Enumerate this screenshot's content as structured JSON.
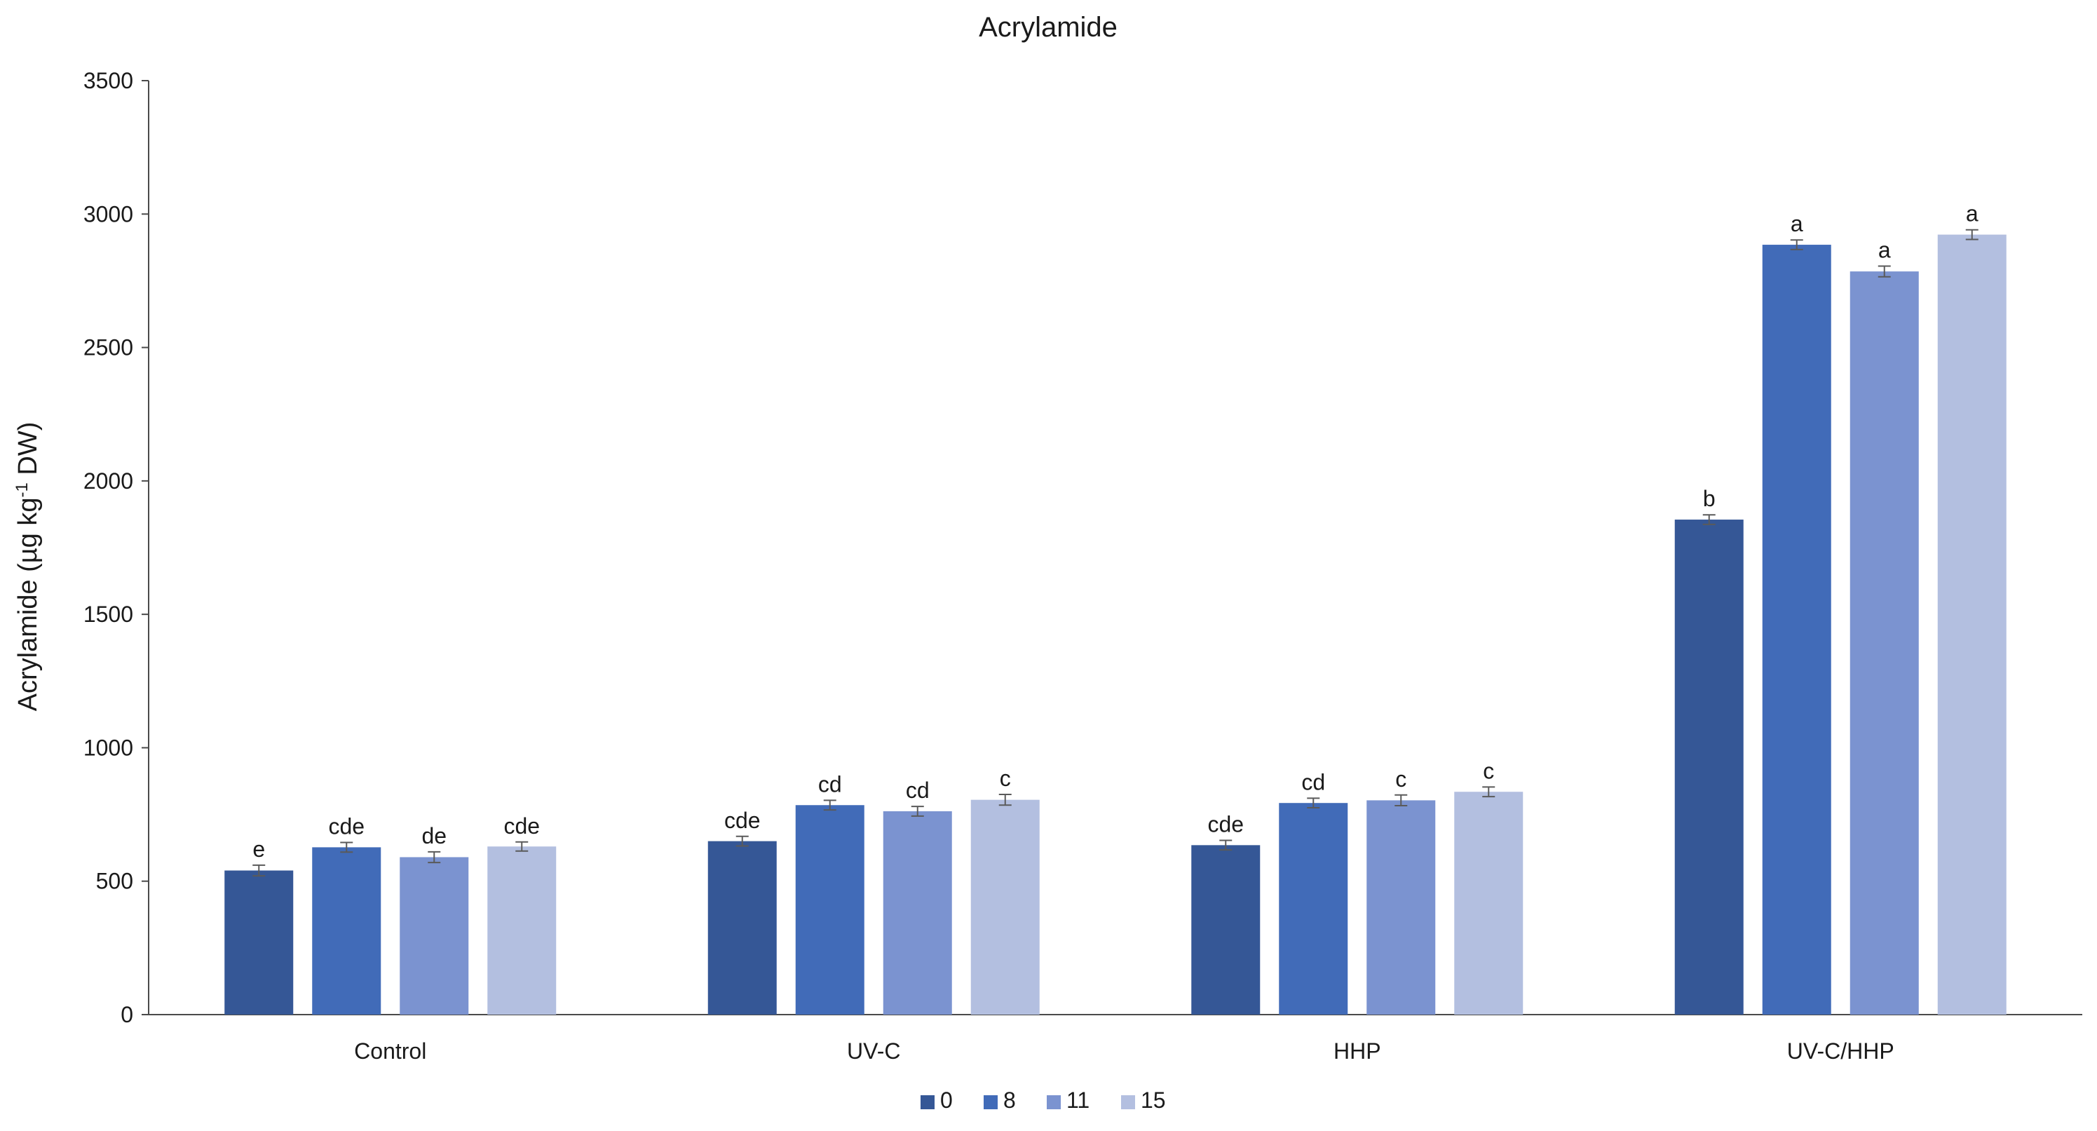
{
  "chart_data": {
    "type": "bar",
    "title": "Acrylamide",
    "ylabel_main": "Acrylamide (µg kg",
    "ylabel_sup": "-1",
    "ylabel_tail": " DW)",
    "xlabel": "",
    "ylim": [
      0,
      3500
    ],
    "yticks": [
      "0",
      "500",
      "1000",
      "1500",
      "2000",
      "2500",
      "3000",
      "3500"
    ],
    "grid": false,
    "legend_position": "bottom-center",
    "categories": [
      "Control",
      "UV-C",
      "HHP",
      "UV-C/HHP"
    ],
    "series": [
      {
        "name": "0",
        "color": "#355796",
        "values": [
          540,
          650,
          635,
          1855
        ],
        "errors": [
          20,
          18,
          18,
          18
        ],
        "letters": [
          "e",
          "cde",
          "cde",
          "b"
        ]
      },
      {
        "name": "8",
        "color": "#416bb8",
        "values": [
          627,
          785,
          793,
          2885
        ],
        "errors": [
          18,
          18,
          18,
          18
        ],
        "letters": [
          "cde",
          "cd",
          "cd",
          "a"
        ]
      },
      {
        "name": "11",
        "color": "#7b93d0",
        "values": [
          590,
          762,
          803,
          2785
        ],
        "errors": [
          20,
          18,
          20,
          20
        ],
        "letters": [
          "de",
          "cd",
          "c",
          "a"
        ]
      },
      {
        "name": "15",
        "color": "#b3bfe0",
        "values": [
          630,
          805,
          835,
          2923
        ],
        "errors": [
          17,
          20,
          18,
          18
        ],
        "letters": [
          "cde",
          "c",
          "c",
          "a"
        ]
      }
    ]
  }
}
